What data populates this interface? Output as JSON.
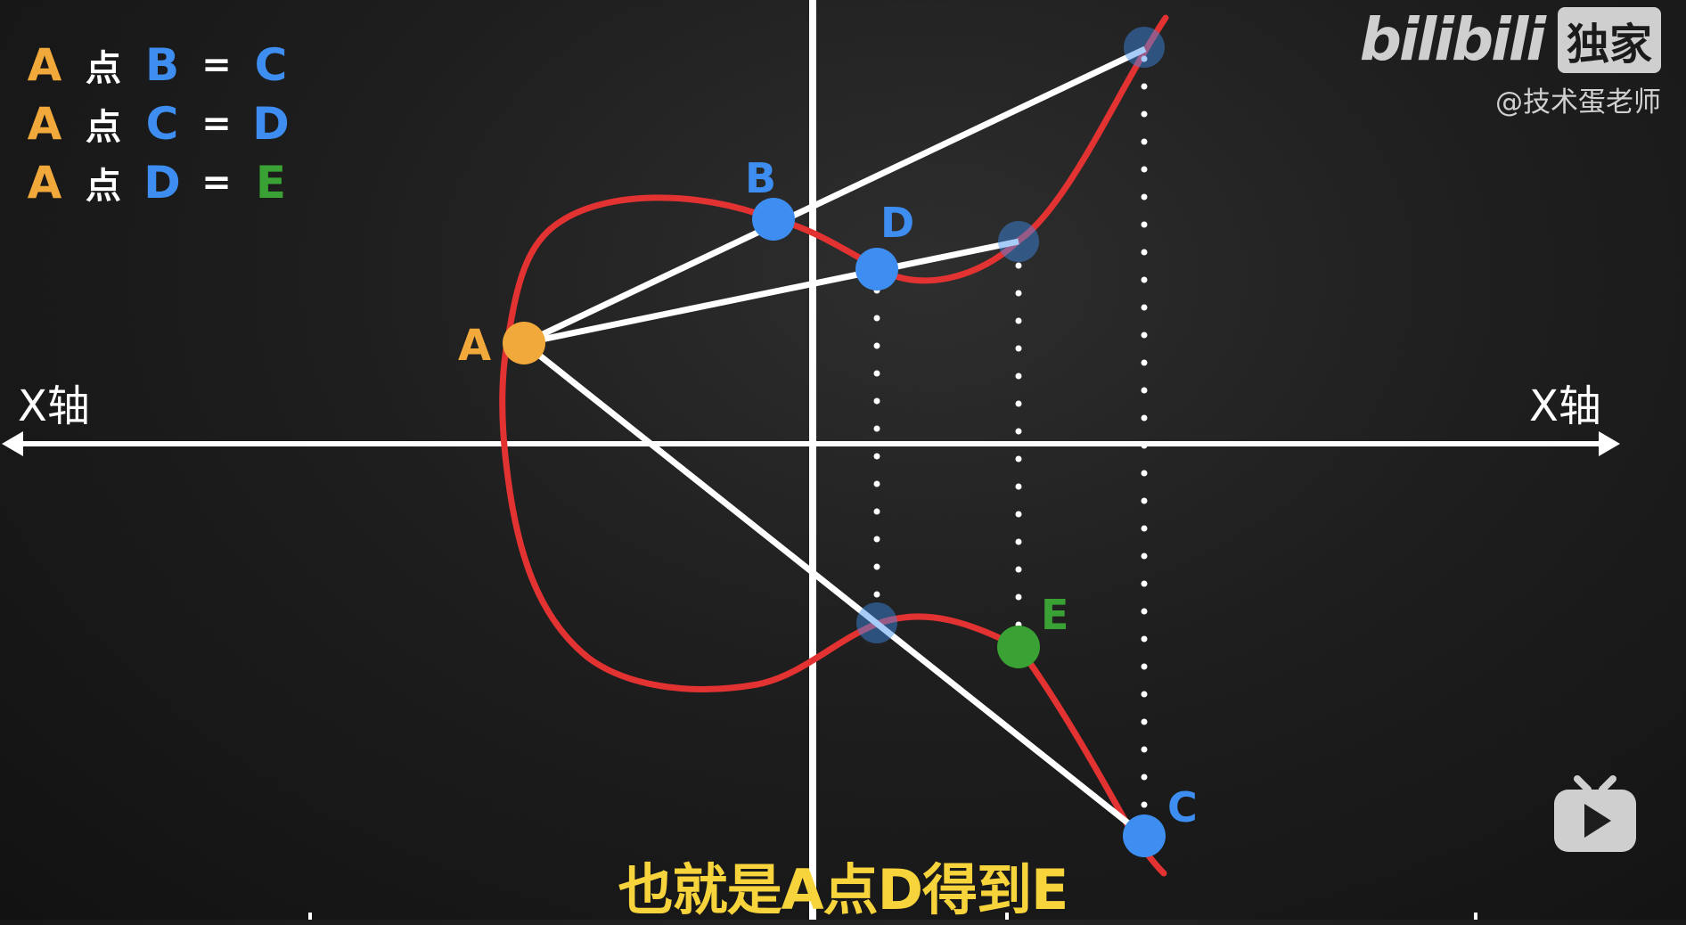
{
  "equations": [
    {
      "a": "A",
      "op": "点",
      "b": "B",
      "eq": "=",
      "result": "C",
      "colors": {
        "a": "#f2a93b",
        "b": "#3d8ef0",
        "result": "#3d8ef0"
      }
    },
    {
      "a": "A",
      "op": "点",
      "b": "C",
      "eq": "=",
      "result": "D",
      "colors": {
        "a": "#f2a93b",
        "b": "#3d8ef0",
        "result": "#3d8ef0"
      }
    },
    {
      "a": "A",
      "op": "点",
      "b": "D",
      "eq": "=",
      "result": "E",
      "colors": {
        "a": "#f2a93b",
        "b": "#3d8ef0",
        "result": "#3aa234"
      }
    }
  ],
  "axis": {
    "left_label": "X轴",
    "right_label": "X轴"
  },
  "points": {
    "A": "A",
    "B": "B",
    "C": "C",
    "D": "D",
    "E": "E"
  },
  "watermark": {
    "brand": "bilibili",
    "badge": "独家",
    "author": "@技术蛋老师"
  },
  "subtitle": "也就是A点D得到E",
  "icons": {
    "tv": "bilibili-tv-icon"
  },
  "colors": {
    "curve": "#e23232",
    "point_A": "#f2a93b",
    "point_blue": "#3d8ef0",
    "point_E": "#3aa234",
    "line": "#ffffff",
    "subtitle": "#f7d43b"
  }
}
